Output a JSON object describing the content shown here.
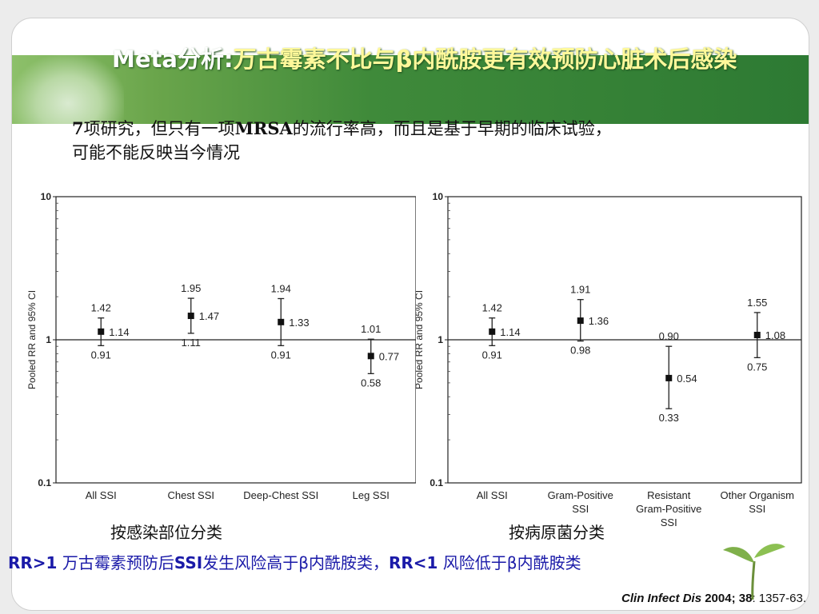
{
  "slide": {
    "title_en": "Meta",
    "title_cn_part1": "分析:",
    "title_cn_part2": "万古霉素不比与β内酰胺更有效预防心脏术后感染",
    "subtitle_line1_num": "7",
    "subtitle_line1_a": "项研究，但只有一项",
    "subtitle_line1_mrsa": "MRSA",
    "subtitle_line1_b": "的流行率高，而且是基于早期的临床试验，",
    "subtitle_line2": "可能不能反映当今情况",
    "caption_left": "按感染部位分类",
    "caption_right": "按病原菌分类",
    "rr_text_1": "RR>1",
    "rr_text_2": " 万古霉素预防后",
    "rr_text_3": "SSI",
    "rr_text_4": "发生风险高于β内酰胺类，",
    "rr_text_5": "RR<1",
    "rr_text_6": " 风险低于β内酰胺类",
    "citation_journal": "Clin Infect Dis",
    "citation_year": " 2004; 38",
    "citation_pages": ": 1357-63."
  },
  "chart_data": [
    {
      "type": "scatter",
      "title": "",
      "ylabel": "Pooled RR and 95% CI",
      "yscale": "log",
      "ylim": [
        0.1,
        10
      ],
      "yticks": [
        "10",
        "1",
        "0.1"
      ],
      "reference_line": 1,
      "categories": [
        "All SSI",
        "Chest SSI",
        "Deep-Chest SSI",
        "Leg SSI"
      ],
      "points": [
        {
          "label": "All SSI",
          "rr": 1.14,
          "upper": 1.42,
          "lower": 0.91,
          "rr_text": "1.14",
          "upper_text": "1.42",
          "lower_text": "0.91"
        },
        {
          "label": "Chest SSI",
          "rr": 1.47,
          "upper": 1.95,
          "lower": 1.11,
          "rr_text": "1.47",
          "upper_text": "1.95",
          "lower_text": "1.11"
        },
        {
          "label": "Deep-Chest SSI",
          "rr": 1.33,
          "upper": 1.94,
          "lower": 0.91,
          "rr_text": "1.33",
          "upper_text": "1.94",
          "lower_text": "0.91"
        },
        {
          "label": "Leg SSI",
          "rr": 0.77,
          "upper": 1.01,
          "lower": 0.58,
          "rr_text": "0.77",
          "upper_text": "1.01",
          "lower_text": "0.58"
        }
      ]
    },
    {
      "type": "scatter",
      "title": "",
      "ylabel": "Pooled RR and 95% CI",
      "yscale": "log",
      "ylim": [
        0.1,
        10
      ],
      "yticks": [
        "10",
        "1",
        "0.1"
      ],
      "reference_line": 1,
      "categories": [
        "All SSI",
        "Gram-Positive SSI",
        "Resistant Gram-Positive SSI",
        "Other Organism SSI"
      ],
      "points": [
        {
          "label": "All SSI",
          "rr": 1.14,
          "upper": 1.42,
          "lower": 0.91,
          "rr_text": "1.14",
          "upper_text": "1.42",
          "lower_text": "0.91"
        },
        {
          "label": "Gram-Positive SSI",
          "rr": 1.36,
          "upper": 1.91,
          "lower": 0.98,
          "rr_text": "1.36",
          "upper_text": "1.91",
          "lower_text": "0.98"
        },
        {
          "label": "Resistant Gram-Positive SSI",
          "rr": 0.54,
          "upper": 0.9,
          "lower": 0.33,
          "rr_text": "0.54",
          "upper_text": "0.90",
          "lower_text": "0.33"
        },
        {
          "label": "Other Organism SSI",
          "rr": 1.08,
          "upper": 1.55,
          "lower": 0.75,
          "rr_text": "1.08",
          "upper_text": "1.55",
          "lower_text": "0.75"
        }
      ]
    }
  ]
}
